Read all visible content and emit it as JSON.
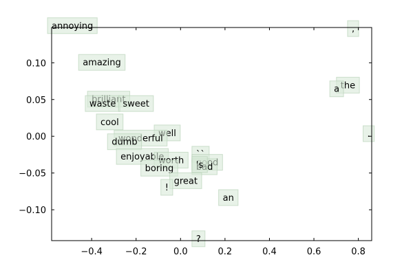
{
  "chart_data": {
    "type": "scatter",
    "title": "",
    "xlabel": "",
    "ylabel": "",
    "xlim": [
      -0.58,
      0.86
    ],
    "ylim": [
      -0.142,
      0.148
    ],
    "xticks": [
      -0.4,
      -0.2,
      0.0,
      0.2,
      0.4,
      0.6,
      0.8
    ],
    "xtick_labels": [
      "−0.4",
      "−0.2",
      "0.0",
      "0.2",
      "0.4",
      "0.6",
      "0.8"
    ],
    "yticks": [
      -0.1,
      -0.05,
      0.0,
      0.05,
      0.1
    ],
    "ytick_labels": [
      "−0.10",
      "−0.05",
      "0.00",
      "0.05",
      "0.10"
    ],
    "grid": false,
    "box_color": "#d9ead9",
    "points": [
      {
        "label": "annoying",
        "x": -0.58,
        "y": 0.151
      },
      {
        "label": ",",
        "x": 0.77,
        "y": 0.147
      },
      {
        "label": "amazing",
        "x": -0.44,
        "y": 0.101
      },
      {
        "label": "the",
        "x": 0.72,
        "y": 0.07
      },
      {
        "label": "a",
        "x": 0.69,
        "y": 0.065
      },
      {
        "label": "brilliant",
        "x": -0.4,
        "y": 0.051
      },
      {
        "label": "waste",
        "x": -0.41,
        "y": 0.045
      },
      {
        "label": "sweet",
        "x": -0.26,
        "y": 0.045
      },
      {
        "label": "cool",
        "x": -0.36,
        "y": 0.02
      },
      {
        "label": ".",
        "x": 0.84,
        "y": 0.004
      },
      {
        "label": "well",
        "x": -0.1,
        "y": 0.005
      },
      {
        "label": "wonderful",
        "x": -0.28,
        "y": -0.002
      },
      {
        "label": "dumb",
        "x": -0.31,
        "y": -0.007
      },
      {
        "label": "enjoyable",
        "x": -0.27,
        "y": -0.027
      },
      {
        "label": "``",
        "x": 0.07,
        "y": -0.024
      },
      {
        "label": "worth",
        "x": -0.1,
        "y": -0.032
      },
      {
        "label": "good",
        "x": 0.07,
        "y": -0.035
      },
      {
        "label": "bad",
        "x": 0.07,
        "y": -0.041
      },
      {
        "label": "'s",
        "x": 0.07,
        "y": -0.038
      },
      {
        "label": "boring",
        "x": -0.16,
        "y": -0.043
      },
      {
        "label": "great",
        "x": -0.03,
        "y": -0.06
      },
      {
        "label": "!",
        "x": -0.07,
        "y": -0.069
      },
      {
        "label": "an",
        "x": 0.19,
        "y": -0.083
      },
      {
        "label": "?",
        "x": 0.07,
        "y": -0.139
      }
    ]
  }
}
